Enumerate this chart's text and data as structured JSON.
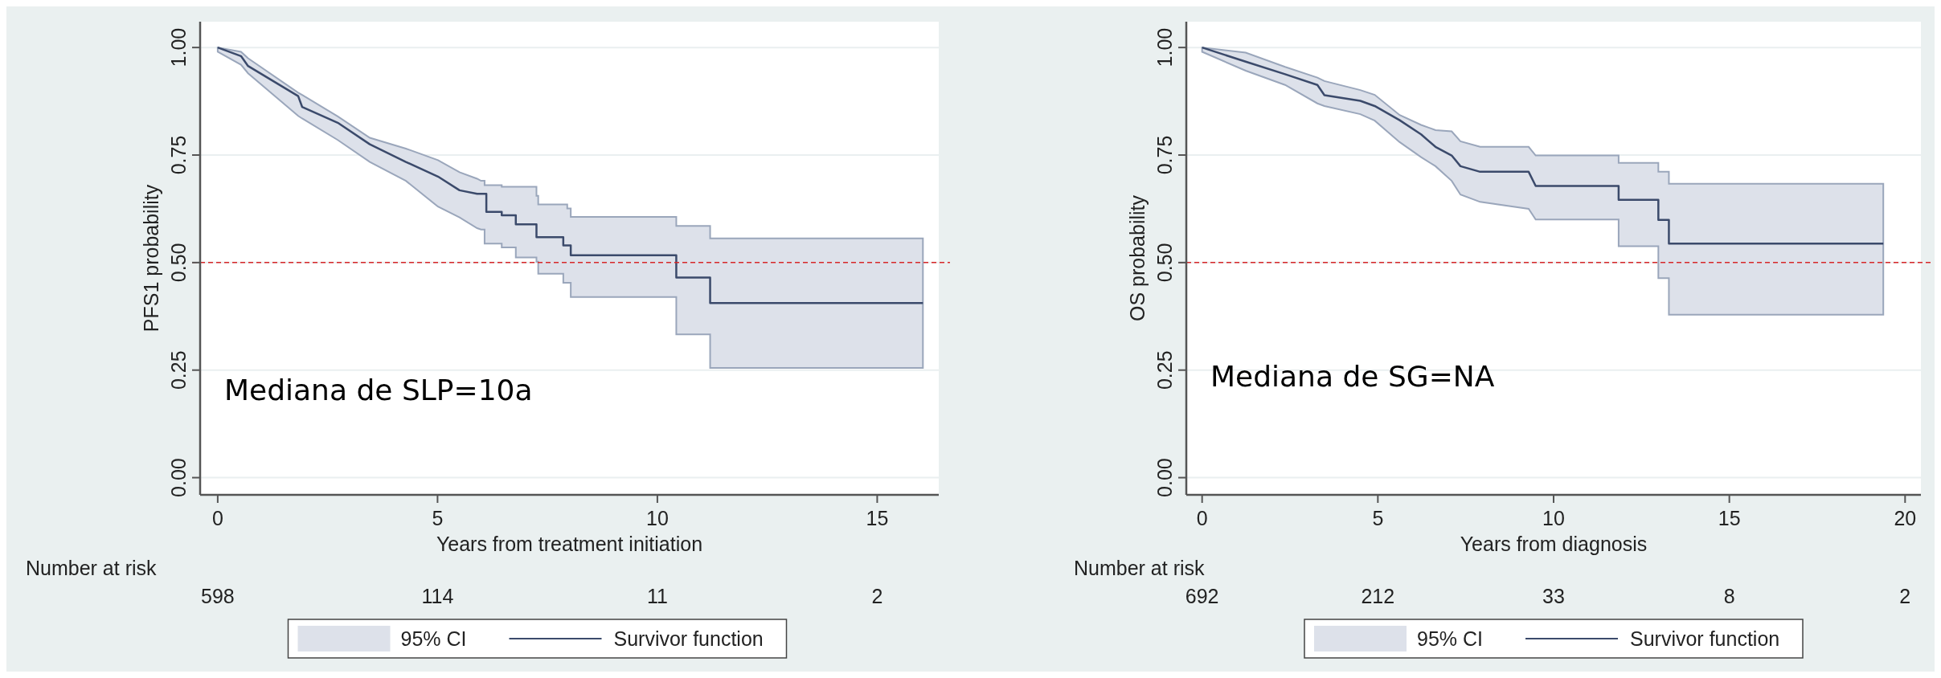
{
  "chart_data": [
    {
      "type": "line",
      "ylabel": "PFS1 probability",
      "xlabel": "Years from treatment initiation",
      "xlim": [
        -0.4,
        16.4
      ],
      "xticks": [
        0,
        5,
        10,
        15
      ],
      "ylim": [
        -0.04,
        1.06
      ],
      "yticks": [
        {
          "value": 0,
          "label": "0.00"
        },
        {
          "value": 0.25,
          "label": "0.25"
        },
        {
          "value": 0.5,
          "label": "0.50"
        },
        {
          "value": 0.75,
          "label": "0.75"
        },
        {
          "value": 1,
          "label": "1.00"
        }
      ],
      "grid": "y",
      "legend": "bottom",
      "ref_lines": [
        {
          "axis": "y",
          "value": 0.5,
          "color": "#d62728",
          "line_style": "dashed"
        }
      ],
      "annotations": [
        "Mediana de SLP=10a",
        "95% CI",
        "Number at risk",
        "598",
        "114",
        "11",
        "2"
      ],
      "series": [
        {
          "name": "Survivor function",
          "color": "#3b4a6b",
          "x": [
            0,
            0.53,
            0.69,
            1.83,
            1.92,
            2.73,
            3.46,
            4.28,
            5.01,
            5.5,
            5.9,
            5.99,
            6.07,
            6.07,
            6.11,
            6.11,
            6.46,
            6.46,
            6.78,
            6.78,
            7.25,
            7.25,
            7.29,
            7.29,
            7.86,
            7.86,
            7.95,
            7.95,
            8.03,
            8.03,
            10.43,
            10.43,
            11.2,
            11.2,
            16.04
          ],
          "values": [
            1.0,
            0.98,
            0.957,
            0.887,
            0.862,
            0.825,
            0.775,
            0.734,
            0.7,
            0.668,
            0.66,
            0.66,
            0.66,
            0.66,
            0.66,
            0.618,
            0.618,
            0.61,
            0.61,
            0.589,
            0.589,
            0.559,
            0.559,
            0.559,
            0.559,
            0.54,
            0.54,
            0.54,
            0.54,
            0.517,
            0.517,
            0.465,
            0.465,
            0.406,
            0.406
          ],
          "upper": [
            1.0,
            0.99,
            0.975,
            0.895,
            0.89,
            0.84,
            0.79,
            0.765,
            0.738,
            0.71,
            0.695,
            0.69,
            0.69,
            0.68,
            0.68,
            0.68,
            0.68,
            0.676,
            0.676,
            0.676,
            0.676,
            0.655,
            0.655,
            0.635,
            0.635,
            0.635,
            0.635,
            0.626,
            0.626,
            0.606,
            0.606,
            0.585,
            0.585,
            0.556,
            0.556
          ],
          "lower": [
            0.99,
            0.96,
            0.94,
            0.841,
            0.835,
            0.785,
            0.734,
            0.69,
            0.63,
            0.605,
            0.58,
            0.577,
            0.577,
            0.544,
            0.544,
            0.544,
            0.544,
            0.535,
            0.535,
            0.512,
            0.512,
            0.502,
            0.502,
            0.474,
            0.474,
            0.453,
            0.453,
            0.453,
            0.453,
            0.42,
            0.42,
            0.333,
            0.333,
            0.255,
            0.255
          ]
        }
      ]
    },
    {
      "type": "line",
      "ylabel": "OS probability",
      "xlabel": "Years from diagnosis",
      "xlim": [
        -0.45,
        20.45
      ],
      "xticks": [
        0,
        5,
        10,
        15,
        20
      ],
      "ylim": [
        -0.04,
        1.06
      ],
      "yticks": [
        {
          "value": 0,
          "label": "0.00"
        },
        {
          "value": 0.25,
          "label": "0.25"
        },
        {
          "value": 0.5,
          "label": "0.50"
        },
        {
          "value": 0.75,
          "label": "0.75"
        },
        {
          "value": 1,
          "label": "1.00"
        }
      ],
      "grid": "y",
      "legend": "bottom",
      "ref_lines": [
        {
          "axis": "y",
          "value": 0.5,
          "color": "#d62728",
          "line_style": "dashed"
        }
      ],
      "annotations": [
        "Mediana de SG=NA",
        "95% CI",
        "Number at risk",
        "692",
        "212",
        "33",
        "8",
        "2"
      ],
      "series": [
        {
          "name": "Survivor function",
          "color": "#3b4a6b",
          "x": [
            0,
            1.24,
            2.36,
            3.28,
            3.48,
            4.5,
            4.91,
            5.62,
            6.23,
            6.64,
            7.1,
            7.35,
            7.91,
            9.29,
            9.49,
            11.85,
            11.85,
            12.98,
            12.98,
            13.28,
            13.28,
            19.38
          ],
          "values": [
            1.0,
            0.967,
            0.938,
            0.913,
            0.889,
            0.876,
            0.864,
            0.831,
            0.798,
            0.769,
            0.749,
            0.724,
            0.711,
            0.711,
            0.678,
            0.678,
            0.646,
            0.646,
            0.599,
            0.599,
            0.544,
            0.544
          ],
          "upper": [
            1.0,
            0.988,
            0.955,
            0.93,
            0.922,
            0.901,
            0.89,
            0.843,
            0.82,
            0.808,
            0.805,
            0.782,
            0.769,
            0.769,
            0.749,
            0.749,
            0.732,
            0.732,
            0.711,
            0.711,
            0.683,
            0.683
          ],
          "lower": [
            0.99,
            0.946,
            0.913,
            0.87,
            0.864,
            0.845,
            0.83,
            0.78,
            0.745,
            0.724,
            0.69,
            0.658,
            0.641,
            0.625,
            0.6,
            0.6,
            0.538,
            0.538,
            0.464,
            0.464,
            0.379,
            0.379
          ]
        }
      ]
    }
  ]
}
